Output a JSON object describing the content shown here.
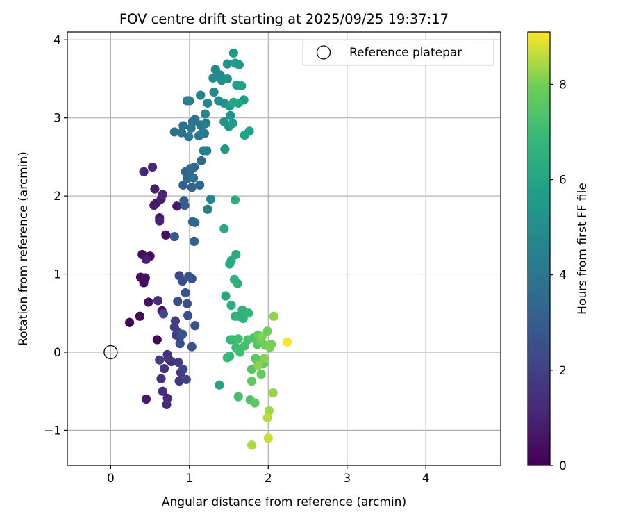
{
  "chart_data": {
    "type": "scatter",
    "title": "FOV centre drift starting at 2025/09/25 19:37:17",
    "xlabel": "Angular distance from reference (arcmin)",
    "ylabel": "Rotation from reference (arcmin)",
    "xlim": [
      -0.55,
      4.95
    ],
    "ylim": [
      -1.45,
      4.1
    ],
    "xticks": [
      "0",
      "1",
      "2",
      "3",
      "4"
    ],
    "xtick_values": [
      0,
      1,
      2,
      3,
      4
    ],
    "yticks": [
      "−1",
      "0",
      "1",
      "2",
      "3",
      "4"
    ],
    "ytick_values": [
      -1,
      0,
      1,
      2,
      3,
      4
    ],
    "grid": true,
    "legend": {
      "label": "Reference platepar",
      "placement": "top-right"
    },
    "reference_point": {
      "x": 0,
      "y": 0
    },
    "colorbar": {
      "label": "Hours from first FF file",
      "range": [
        0,
        9.1
      ],
      "ticks": [
        "0",
        "2",
        "4",
        "6",
        "8"
      ],
      "tick_values": [
        0,
        2,
        4,
        6,
        8
      ],
      "colormap": "viridis"
    },
    "points": [
      [
        0.24,
        0.38,
        0.0
      ],
      [
        0.37,
        0.46,
        0.1
      ],
      [
        0.59,
        0.16,
        0.15
      ],
      [
        0.5,
        1.23,
        0.2
      ],
      [
        0.38,
        0.96,
        0.25
      ],
      [
        0.42,
        0.89,
        0.3
      ],
      [
        0.4,
        1.25,
        0.35
      ],
      [
        0.48,
        0.64,
        0.4
      ],
      [
        0.7,
        1.5,
        0.45
      ],
      [
        0.44,
        0.95,
        0.5
      ],
      [
        0.65,
        0.53,
        0.55
      ],
      [
        0.58,
        1.91,
        0.6
      ],
      [
        0.62,
        1.72,
        0.65
      ],
      [
        0.45,
        -0.6,
        0.7
      ],
      [
        0.55,
        1.88,
        0.75
      ],
      [
        0.84,
        1.87,
        0.8
      ],
      [
        0.56,
        2.09,
        0.85
      ],
      [
        0.45,
        1.19,
        0.9
      ],
      [
        0.64,
        1.96,
        0.95
      ],
      [
        0.62,
        1.68,
        1.0
      ],
      [
        0.66,
        2.02,
        1.05
      ],
      [
        0.42,
        2.31,
        1.1
      ],
      [
        0.53,
        2.37,
        1.15
      ],
      [
        0.72,
        -0.59,
        1.2
      ],
      [
        0.71,
        -0.67,
        1.25
      ],
      [
        0.6,
        0.66,
        1.3
      ],
      [
        0.66,
        -0.5,
        1.35
      ],
      [
        0.72,
        -0.03,
        1.4
      ],
      [
        0.64,
        -0.34,
        1.45
      ],
      [
        0.68,
        -0.21,
        1.5
      ],
      [
        0.73,
        -0.08,
        1.55
      ],
      [
        0.77,
        -0.12,
        1.6
      ],
      [
        0.89,
        -0.26,
        1.65
      ],
      [
        0.87,
        -0.37,
        1.7
      ],
      [
        0.62,
        -0.1,
        1.75
      ],
      [
        0.86,
        -0.13,
        1.8
      ],
      [
        0.82,
        0.4,
        1.85
      ],
      [
        0.83,
        0.22,
        1.9
      ],
      [
        0.85,
        0.26,
        1.95
      ],
      [
        0.81,
        0.32,
        2.0
      ],
      [
        0.88,
        0.2,
        2.05
      ],
      [
        0.92,
        -0.22,
        2.1
      ],
      [
        0.96,
        -0.35,
        2.15
      ],
      [
        0.67,
        0.49,
        2.2
      ],
      [
        0.87,
        0.98,
        2.25
      ],
      [
        0.91,
        0.91,
        2.3
      ],
      [
        1.03,
        0.94,
        2.35
      ],
      [
        0.88,
        0.11,
        2.4
      ],
      [
        0.85,
        0.65,
        2.45
      ],
      [
        0.98,
        0.47,
        2.5
      ],
      [
        0.97,
        0.62,
        2.55
      ],
      [
        1.03,
        0.07,
        2.6
      ],
      [
        1.07,
        0.34,
        2.65
      ],
      [
        0.95,
        0.76,
        2.7
      ],
      [
        0.91,
        0.23,
        2.75
      ],
      [
        0.99,
        0.97,
        2.8
      ],
      [
        0.81,
        1.48,
        2.9
      ],
      [
        0.93,
        1.94,
        3.0
      ],
      [
        0.94,
        1.88,
        3.05
      ],
      [
        0.92,
        2.14,
        3.1
      ],
      [
        1.06,
        1.42,
        3.15
      ],
      [
        1.03,
        2.11,
        3.2
      ],
      [
        0.95,
        2.31,
        3.25
      ],
      [
        1.0,
        2.31,
        3.3
      ],
      [
        1.07,
        1.66,
        3.35
      ],
      [
        1.04,
        1.67,
        3.4
      ],
      [
        1.13,
        2.14,
        3.45
      ],
      [
        0.97,
        2.22,
        3.5
      ],
      [
        1.06,
        2.37,
        3.55
      ],
      [
        1.15,
        2.45,
        3.6
      ],
      [
        1.01,
        2.35,
        3.65
      ],
      [
        1.05,
        2.23,
        3.7
      ],
      [
        0.81,
        2.82,
        3.75
      ],
      [
        0.92,
        2.9,
        3.8
      ],
      [
        0.9,
        2.81,
        3.85
      ],
      [
        1.04,
        2.95,
        3.9
      ],
      [
        1.07,
        2.98,
        3.95
      ],
      [
        1.12,
        2.77,
        4.0
      ],
      [
        1.19,
        2.8,
        4.05
      ],
      [
        1.14,
        2.91,
        4.1
      ],
      [
        0.99,
        2.76,
        4.15
      ],
      [
        1.0,
        3.22,
        4.2
      ],
      [
        1.02,
        2.87,
        4.25
      ],
      [
        1.21,
        2.93,
        4.3
      ],
      [
        1.17,
        2.82,
        4.35
      ],
      [
        1.23,
        1.83,
        4.4
      ],
      [
        0.97,
        3.22,
        4.45
      ],
      [
        1.14,
        3.29,
        4.5
      ],
      [
        1.18,
        2.58,
        4.55
      ],
      [
        1.22,
        2.58,
        4.6
      ],
      [
        1.27,
        1.96,
        4.65
      ],
      [
        1.23,
        3.19,
        4.7
      ],
      [
        1.2,
        3.05,
        4.75
      ],
      [
        1.31,
        3.33,
        4.8
      ],
      [
        1.33,
        3.62,
        4.85
      ],
      [
        1.3,
        3.51,
        4.9
      ],
      [
        1.39,
        3.55,
        4.95
      ],
      [
        1.37,
        3.22,
        5.0
      ],
      [
        1.41,
        3.48,
        5.05
      ],
      [
        1.44,
        3.19,
        5.1
      ],
      [
        1.48,
        3.69,
        5.15
      ],
      [
        1.44,
        2.95,
        5.2
      ],
      [
        1.48,
        3.5,
        5.25
      ],
      [
        1.52,
        3.03,
        5.3
      ],
      [
        1.5,
        2.89,
        5.35
      ],
      [
        1.45,
        2.6,
        5.4
      ],
      [
        1.56,
        3.83,
        5.45
      ],
      [
        1.63,
        3.68,
        5.5
      ],
      [
        1.58,
        3.7,
        5.55
      ],
      [
        1.51,
        3.15,
        5.6
      ],
      [
        1.55,
        2.93,
        5.65
      ],
      [
        1.6,
        3.42,
        5.7
      ],
      [
        1.69,
        3.23,
        5.75
      ],
      [
        1.66,
        3.41,
        5.8
      ],
      [
        1.7,
        2.78,
        5.85
      ],
      [
        1.76,
        2.83,
        5.9
      ],
      [
        1.56,
        3.2,
        5.95
      ],
      [
        1.62,
        3.19,
        6.0
      ],
      [
        1.38,
        -0.42,
        6.05
      ],
      [
        1.44,
        1.58,
        6.1
      ],
      [
        1.46,
        0.72,
        6.15
      ],
      [
        1.51,
        1.13,
        6.2
      ],
      [
        1.53,
        1.17,
        6.25
      ],
      [
        1.59,
        1.25,
        6.3
      ],
      [
        1.58,
        1.95,
        6.35
      ],
      [
        1.53,
        0.6,
        6.4
      ],
      [
        1.57,
        0.93,
        6.45
      ],
      [
        1.61,
        0.88,
        6.5
      ],
      [
        1.58,
        0.46,
        6.55
      ],
      [
        1.62,
        0.46,
        6.6
      ],
      [
        1.67,
        0.54,
        6.65
      ],
      [
        1.68,
        0.43,
        6.7
      ],
      [
        1.75,
        0.5,
        6.75
      ],
      [
        1.52,
        0.16,
        6.8
      ],
      [
        1.48,
        -0.07,
        6.85
      ],
      [
        1.51,
        -0.05,
        6.9
      ],
      [
        1.55,
        0.16,
        6.95
      ],
      [
        1.59,
        0.06,
        7.0
      ],
      [
        1.62,
        0.17,
        7.05
      ],
      [
        1.64,
        0.0,
        7.1
      ],
      [
        1.62,
        -0.57,
        7.15
      ],
      [
        1.7,
        0.08,
        7.2
      ],
      [
        1.74,
        0.16,
        7.25
      ],
      [
        1.77,
        -0.61,
        7.3
      ],
      [
        1.81,
        0.18,
        7.35
      ],
      [
        1.86,
        0.1,
        7.4
      ],
      [
        1.89,
        -0.12,
        7.45
      ],
      [
        1.79,
        -0.22,
        7.5
      ],
      [
        1.84,
        -0.08,
        7.55
      ],
      [
        1.83,
        -0.65,
        7.6
      ],
      [
        1.79,
        -0.37,
        7.65
      ],
      [
        1.91,
        -0.28,
        7.7
      ],
      [
        1.87,
        0.22,
        7.75
      ],
      [
        1.94,
        -0.15,
        7.8
      ],
      [
        1.9,
        0.15,
        7.85
      ],
      [
        1.96,
        0.09,
        7.9
      ],
      [
        1.99,
        0.27,
        7.95
      ],
      [
        2.04,
        0.1,
        8.0
      ],
      [
        2.02,
        0.06,
        8.05
      ],
      [
        1.92,
        0.2,
        8.1
      ],
      [
        1.95,
        -0.08,
        8.15
      ],
      [
        1.87,
        -0.17,
        8.2
      ],
      [
        2.07,
        0.46,
        8.25
      ],
      [
        2.06,
        -0.52,
        8.3
      ],
      [
        2.01,
        -0.75,
        8.35
      ],
      [
        1.79,
        -1.19,
        8.45
      ],
      [
        1.99,
        -0.84,
        8.55
      ],
      [
        2.0,
        -1.1,
        8.7
      ],
      [
        2.24,
        0.13,
        9.05
      ]
    ]
  }
}
